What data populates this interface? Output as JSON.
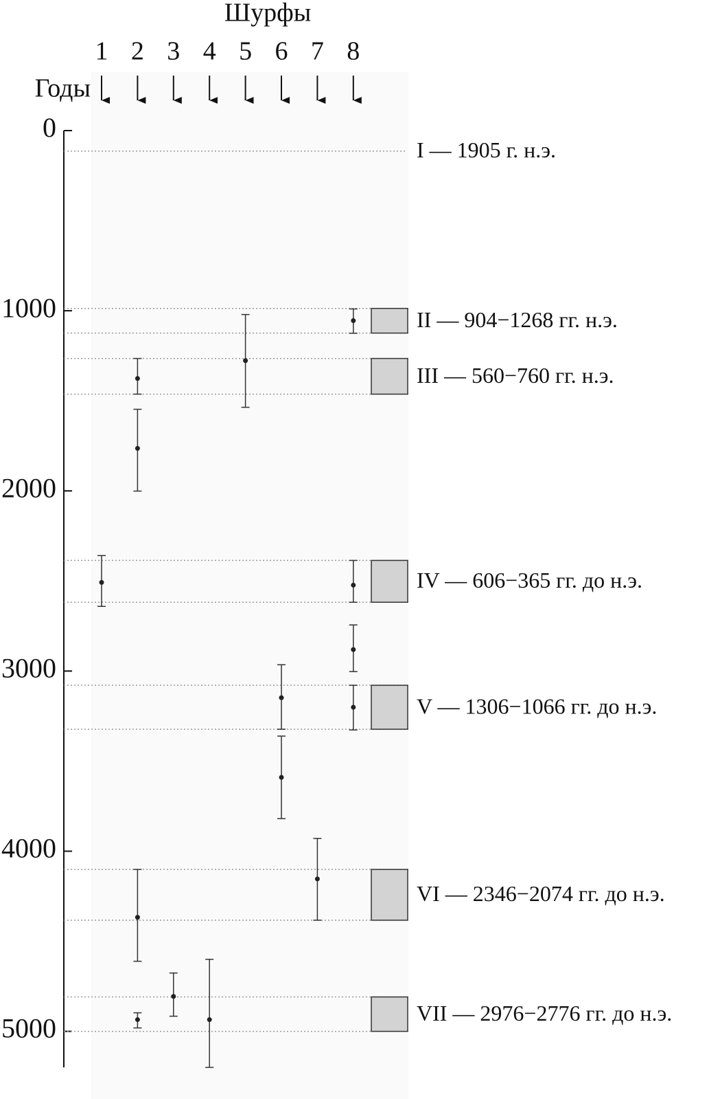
{
  "chart_data": {
    "type": "errorbar",
    "title": "Шурфы",
    "y_label": "Годы",
    "categories": [
      "1",
      "2",
      "3",
      "4",
      "5",
      "6",
      "7",
      "8"
    ],
    "ylim": [
      0,
      5200
    ],
    "yticks": [
      0,
      1000,
      2000,
      3000,
      4000,
      5000
    ],
    "y_inverted": true,
    "color": "#222222",
    "points": {
      "x": [
        "8",
        "2",
        "5",
        "2",
        "1",
        "8",
        "8",
        "6",
        "8",
        "6",
        "7",
        "2",
        "3",
        "2",
        "4"
      ],
      "values": [
        1055,
        1376,
        1277,
        1764,
        2508,
        2523,
        2881,
        3148,
        3201,
        3590,
        4154,
        4367,
        4806,
        4935,
        4935
      ],
      "low": [
        990,
        1265,
        1021,
        1547,
        2359,
        2386,
        2744,
        2965,
        3079,
        3361,
        3929,
        4101,
        4676,
        4897,
        4600
      ],
      "high": [
        1125,
        1463,
        1536,
        2001,
        2641,
        2618,
        3003,
        3323,
        3327,
        3819,
        4383,
        4611,
        4916,
        4981,
        5200
      ]
    },
    "periods": [
      {
        "label": "I — 1905 г. н.э.",
        "top": 114
      },
      {
        "label": "II — 904−1268 гг. н.э.",
        "top": 987,
        "bottom": 1124
      },
      {
        "label": "III — 560−760 гг. н.э.",
        "top": 1265,
        "bottom": 1463
      },
      {
        "label": "IV — 606−365 гг. до н.э.",
        "top": 2386,
        "bottom": 2618
      },
      {
        "label": "V — 1306−1066 гг. до н.э.",
        "top": 3079,
        "bottom": 3323
      },
      {
        "label": "VI — 2346−2074 гг. до н.э.",
        "top": 4101,
        "bottom": 4383
      },
      {
        "label": "VII — 2976−2776 гг. до н.э.",
        "top": 4809,
        "bottom": 5000
      }
    ],
    "box_color": "#d3d3d3"
  }
}
